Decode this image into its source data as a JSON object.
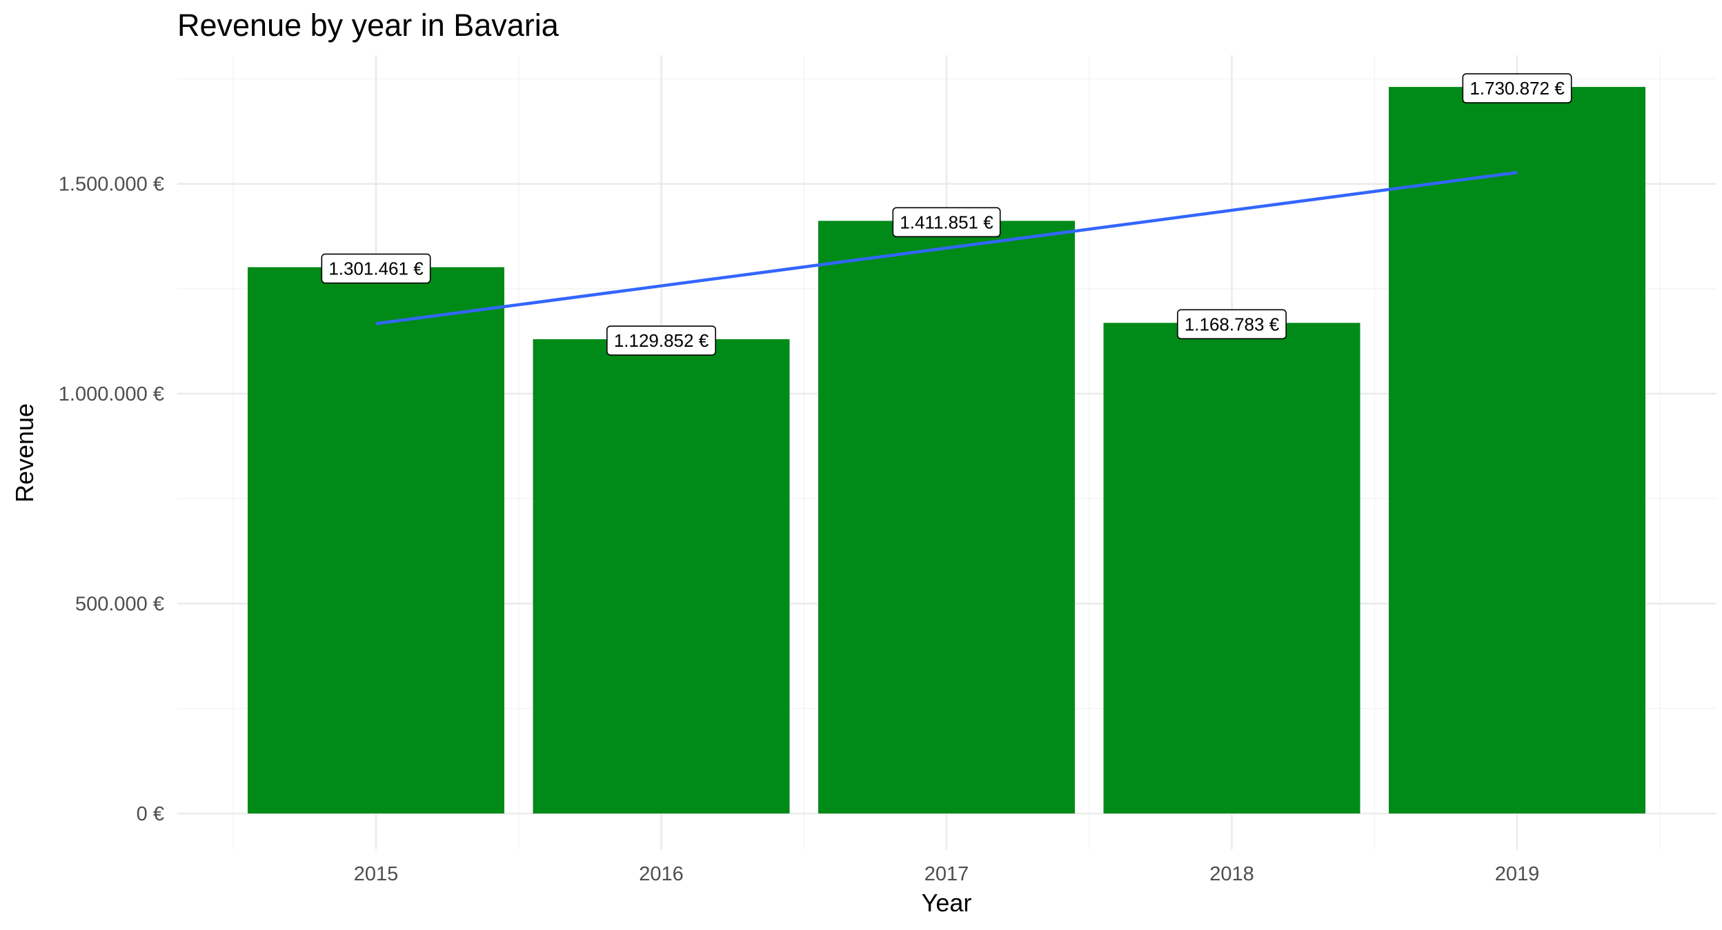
{
  "chart_data": {
    "type": "bar",
    "title": "Revenue by year in Bavaria",
    "xlabel": "Year",
    "ylabel": "Revenue",
    "categories": [
      "2015",
      "2016",
      "2017",
      "2018",
      "2019"
    ],
    "values": [
      1301461,
      1129852,
      1411851,
      1168783,
      1730872
    ],
    "data_labels": [
      "1.301.461 €",
      "1.129.852 €",
      "1.411.851 €",
      "1.168.783 €",
      "1.730.872 €"
    ],
    "ylim": [
      0,
      1800000
    ],
    "y_ticks": [
      0,
      500000,
      1000000,
      1500000
    ],
    "y_tick_labels": [
      "0 €",
      "500.000 €",
      "1.000.000 €",
      "1.500.000 €"
    ],
    "trend_line": {
      "type": "linear",
      "x": [
        "2015",
        "2019"
      ],
      "y": [
        1167000,
        1527000
      ]
    },
    "grid": true,
    "legend": "none",
    "colors": {
      "bar": "#008B18",
      "trend": "#3366FF",
      "grid": "#EBEBEB",
      "tick_text": "#4D4D4D"
    }
  }
}
